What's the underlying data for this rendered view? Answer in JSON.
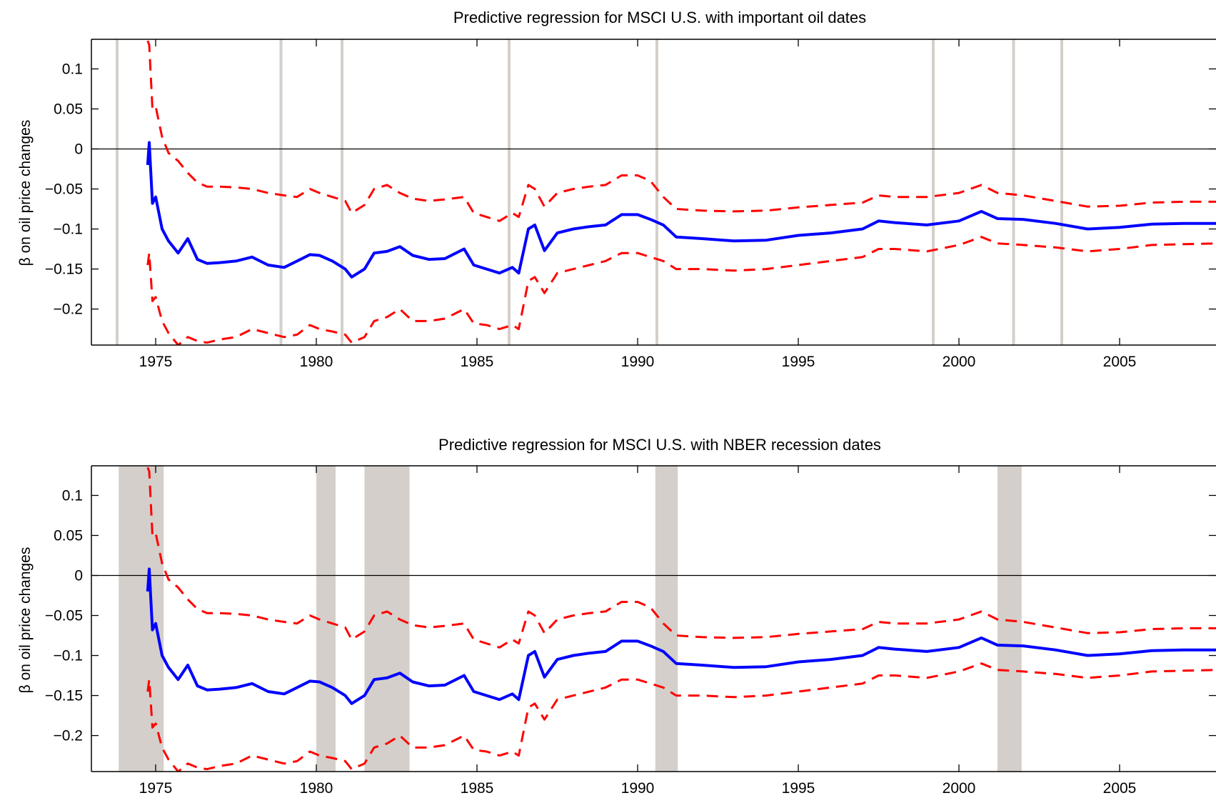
{
  "chart_data": [
    {
      "type": "line",
      "title": "Predictive regression for MSCI U.S. with important oil dates",
      "xlabel": "",
      "ylabel": "β on oil price changes",
      "xlim": [
        1973.0,
        2008.0
      ],
      "ylim": [
        -0.245,
        0.137
      ],
      "xticks": [
        1975,
        1980,
        1985,
        1990,
        1995,
        2000,
        2005
      ],
      "xtick_labels": [
        "1975",
        "1980",
        "1985",
        "1990",
        "1995",
        "2000",
        "2005"
      ],
      "yticks": [
        0.1,
        0.05,
        0,
        -0.05,
        -0.1,
        -0.15,
        -0.2
      ],
      "ytick_labels": [
        "0.1",
        "0.05",
        "0",
        "−0.05",
        "−0.1",
        "−0.15",
        "−0.2"
      ],
      "grid": false,
      "zero_line": true,
      "highlight_type": "lines",
      "highlights": [
        1973.8,
        1978.9,
        1980.8,
        1986.0,
        1990.6,
        1999.2,
        2001.7,
        2003.2
      ],
      "highlight_color": "#d4cfca",
      "series": [
        {
          "color": "#0000ff",
          "style": "solid",
          "x": [
            1974.75,
            1974.8,
            1974.9,
            1975.0,
            1975.2,
            1975.4,
            1975.7,
            1976.0,
            1976.3,
            1976.6,
            1977.0,
            1977.5,
            1978.0,
            1978.5,
            1979.0,
            1979.4,
            1979.8,
            1980.1,
            1980.5,
            1980.9,
            1981.1,
            1981.5,
            1981.8,
            1982.2,
            1982.6,
            1983.0,
            1983.5,
            1984.0,
            1984.6,
            1984.9,
            1985.3,
            1985.7,
            1986.1,
            1986.3,
            1986.6,
            1986.8,
            1987.1,
            1987.5,
            1988.0,
            1988.5,
            1989.0,
            1989.5,
            1990.0,
            1990.4,
            1990.8,
            1991.2,
            1992.0,
            1993.0,
            1994.0,
            1995.0,
            1996.0,
            1997.0,
            1997.5,
            1998.0,
            1999.0,
            2000.0,
            2000.7,
            2001.2,
            2002.0,
            2003.0,
            2004.0,
            2005.0,
            2006.0,
            2007.0,
            2008.0
          ],
          "y": [
            -0.02,
            0.008,
            -0.068,
            -0.06,
            -0.1,
            -0.115,
            -0.13,
            -0.112,
            -0.138,
            -0.143,
            -0.142,
            -0.14,
            -0.135,
            -0.145,
            -0.148,
            -0.14,
            -0.132,
            -0.133,
            -0.14,
            -0.15,
            -0.16,
            -0.15,
            -0.13,
            -0.128,
            -0.122,
            -0.133,
            -0.138,
            -0.137,
            -0.125,
            -0.145,
            -0.15,
            -0.155,
            -0.148,
            -0.155,
            -0.1,
            -0.095,
            -0.127,
            -0.105,
            -0.1,
            -0.097,
            -0.095,
            -0.082,
            -0.082,
            -0.088,
            -0.095,
            -0.11,
            -0.112,
            -0.115,
            -0.114,
            -0.108,
            -0.105,
            -0.1,
            -0.09,
            -0.092,
            -0.095,
            -0.09,
            -0.078,
            -0.087,
            -0.088,
            -0.093,
            -0.1,
            -0.098,
            -0.094,
            -0.093,
            -0.093
          ]
        },
        {
          "color": "#ff0000",
          "style": "dashed",
          "x": [
            1974.75,
            1974.8,
            1974.9,
            1975.0,
            1975.2,
            1975.4,
            1975.7,
            1976.0,
            1976.3,
            1976.6,
            1977.0,
            1977.5,
            1978.0,
            1978.5,
            1979.0,
            1979.4,
            1979.8,
            1980.1,
            1980.5,
            1980.9,
            1981.1,
            1981.5,
            1981.8,
            1982.2,
            1982.6,
            1983.0,
            1983.5,
            1984.0,
            1984.6,
            1984.9,
            1985.3,
            1985.7,
            1986.1,
            1986.3,
            1986.6,
            1986.8,
            1987.1,
            1987.5,
            1988.0,
            1988.5,
            1989.0,
            1989.5,
            1990.0,
            1990.4,
            1990.8,
            1991.2,
            1992.0,
            1993.0,
            1994.0,
            1995.0,
            1996.0,
            1997.0,
            1997.5,
            1998.0,
            1999.0,
            2000.0,
            2000.7,
            2001.2,
            2002.0,
            2003.0,
            2004.0,
            2005.0,
            2006.0,
            2007.0,
            2008.0
          ],
          "y": [
            0.135,
            0.13,
            0.05,
            0.053,
            0.015,
            -0.005,
            -0.015,
            -0.03,
            -0.042,
            -0.047,
            -0.047,
            -0.048,
            -0.05,
            -0.055,
            -0.058,
            -0.06,
            -0.05,
            -0.055,
            -0.06,
            -0.065,
            -0.08,
            -0.07,
            -0.05,
            -0.045,
            -0.055,
            -0.062,
            -0.065,
            -0.063,
            -0.06,
            -0.08,
            -0.085,
            -0.09,
            -0.08,
            -0.085,
            -0.045,
            -0.05,
            -0.072,
            -0.055,
            -0.05,
            -0.047,
            -0.045,
            -0.033,
            -0.033,
            -0.04,
            -0.06,
            -0.075,
            -0.077,
            -0.078,
            -0.077,
            -0.073,
            -0.07,
            -0.067,
            -0.058,
            -0.06,
            -0.06,
            -0.055,
            -0.045,
            -0.055,
            -0.058,
            -0.065,
            -0.072,
            -0.071,
            -0.067,
            -0.066,
            -0.066
          ]
        },
        {
          "color": "#ff0000",
          "style": "dashed",
          "x": [
            1974.75,
            1974.8,
            1974.9,
            1975.0,
            1975.2,
            1975.4,
            1975.7,
            1976.0,
            1976.3,
            1976.6,
            1977.0,
            1977.5,
            1978.0,
            1978.5,
            1979.0,
            1979.4,
            1979.8,
            1980.1,
            1980.5,
            1980.9,
            1981.1,
            1981.5,
            1981.8,
            1982.2,
            1982.6,
            1983.0,
            1983.5,
            1984.0,
            1984.6,
            1984.9,
            1985.3,
            1985.7,
            1986.1,
            1986.3,
            1986.6,
            1986.8,
            1987.1,
            1987.5,
            1988.0,
            1988.5,
            1989.0,
            1989.5,
            1990.0,
            1990.4,
            1990.8,
            1991.2,
            1992.0,
            1993.0,
            1994.0,
            1995.0,
            1996.0,
            1997.0,
            1997.5,
            1998.0,
            1999.0,
            2000.0,
            2000.7,
            2001.2,
            2002.0,
            2003.0,
            2004.0,
            2005.0,
            2006.0,
            2007.0,
            2008.0
          ],
          "y": [
            -0.145,
            -0.13,
            -0.19,
            -0.185,
            -0.215,
            -0.23,
            -0.245,
            -0.235,
            -0.24,
            -0.242,
            -0.238,
            -0.235,
            -0.225,
            -0.23,
            -0.235,
            -0.232,
            -0.22,
            -0.225,
            -0.228,
            -0.232,
            -0.242,
            -0.235,
            -0.215,
            -0.21,
            -0.2,
            -0.215,
            -0.215,
            -0.212,
            -0.2,
            -0.218,
            -0.22,
            -0.225,
            -0.22,
            -0.225,
            -0.165,
            -0.16,
            -0.18,
            -0.155,
            -0.15,
            -0.145,
            -0.14,
            -0.13,
            -0.13,
            -0.135,
            -0.14,
            -0.15,
            -0.15,
            -0.152,
            -0.15,
            -0.145,
            -0.14,
            -0.135,
            -0.125,
            -0.125,
            -0.128,
            -0.12,
            -0.11,
            -0.118,
            -0.12,
            -0.123,
            -0.128,
            -0.125,
            -0.12,
            -0.119,
            -0.118
          ]
        }
      ]
    },
    {
      "type": "line",
      "title": "Predictive regression for MSCI U.S. with NBER recession dates",
      "xlabel": "",
      "ylabel": "β on oil price changes",
      "xlim": [
        1973.0,
        2008.0
      ],
      "ylim": [
        -0.245,
        0.137
      ],
      "xticks": [
        1975,
        1980,
        1985,
        1990,
        1995,
        2000,
        2005
      ],
      "xtick_labels": [
        "1975",
        "1980",
        "1985",
        "1990",
        "1995",
        "2000",
        "2005"
      ],
      "yticks": [
        0.1,
        0.05,
        0,
        -0.05,
        -0.1,
        -0.15,
        -0.2
      ],
      "ytick_labels": [
        "0.1",
        "0.05",
        "0",
        "−0.05",
        "−0.1",
        "−0.15",
        "−0.2"
      ],
      "grid": false,
      "zero_line": true,
      "highlight_type": "bands",
      "highlights": [
        [
          1973.85,
          1975.25
        ],
        [
          1980.0,
          1980.6
        ],
        [
          1981.5,
          1982.9
        ],
        [
          1990.55,
          1991.25
        ],
        [
          2001.2,
          2001.95
        ]
      ],
      "highlight_color": "#d4cfca",
      "series": [
        {
          "color": "#0000ff",
          "style": "solid",
          "x": [
            1974.75,
            1974.8,
            1974.9,
            1975.0,
            1975.2,
            1975.4,
            1975.7,
            1976.0,
            1976.3,
            1976.6,
            1977.0,
            1977.5,
            1978.0,
            1978.5,
            1979.0,
            1979.4,
            1979.8,
            1980.1,
            1980.5,
            1980.9,
            1981.1,
            1981.5,
            1981.8,
            1982.2,
            1982.6,
            1983.0,
            1983.5,
            1984.0,
            1984.6,
            1984.9,
            1985.3,
            1985.7,
            1986.1,
            1986.3,
            1986.6,
            1986.8,
            1987.1,
            1987.5,
            1988.0,
            1988.5,
            1989.0,
            1989.5,
            1990.0,
            1990.4,
            1990.8,
            1991.2,
            1992.0,
            1993.0,
            1994.0,
            1995.0,
            1996.0,
            1997.0,
            1997.5,
            1998.0,
            1999.0,
            2000.0,
            2000.7,
            2001.2,
            2002.0,
            2003.0,
            2004.0,
            2005.0,
            2006.0,
            2007.0,
            2008.0
          ],
          "y": [
            -0.02,
            0.008,
            -0.068,
            -0.06,
            -0.1,
            -0.115,
            -0.13,
            -0.112,
            -0.138,
            -0.143,
            -0.142,
            -0.14,
            -0.135,
            -0.145,
            -0.148,
            -0.14,
            -0.132,
            -0.133,
            -0.14,
            -0.15,
            -0.16,
            -0.15,
            -0.13,
            -0.128,
            -0.122,
            -0.133,
            -0.138,
            -0.137,
            -0.125,
            -0.145,
            -0.15,
            -0.155,
            -0.148,
            -0.155,
            -0.1,
            -0.095,
            -0.127,
            -0.105,
            -0.1,
            -0.097,
            -0.095,
            -0.082,
            -0.082,
            -0.088,
            -0.095,
            -0.11,
            -0.112,
            -0.115,
            -0.114,
            -0.108,
            -0.105,
            -0.1,
            -0.09,
            -0.092,
            -0.095,
            -0.09,
            -0.078,
            -0.087,
            -0.088,
            -0.093,
            -0.1,
            -0.098,
            -0.094,
            -0.093,
            -0.093
          ]
        },
        {
          "color": "#ff0000",
          "style": "dashed",
          "x": [
            1974.75,
            1974.8,
            1974.9,
            1975.0,
            1975.2,
            1975.4,
            1975.7,
            1976.0,
            1976.3,
            1976.6,
            1977.0,
            1977.5,
            1978.0,
            1978.5,
            1979.0,
            1979.4,
            1979.8,
            1980.1,
            1980.5,
            1980.9,
            1981.1,
            1981.5,
            1981.8,
            1982.2,
            1982.6,
            1983.0,
            1983.5,
            1984.0,
            1984.6,
            1984.9,
            1985.3,
            1985.7,
            1986.1,
            1986.3,
            1986.6,
            1986.8,
            1987.1,
            1987.5,
            1988.0,
            1988.5,
            1989.0,
            1989.5,
            1990.0,
            1990.4,
            1990.8,
            1991.2,
            1992.0,
            1993.0,
            1994.0,
            1995.0,
            1996.0,
            1997.0,
            1997.5,
            1998.0,
            1999.0,
            2000.0,
            2000.7,
            2001.2,
            2002.0,
            2003.0,
            2004.0,
            2005.0,
            2006.0,
            2007.0,
            2008.0
          ],
          "y": [
            0.135,
            0.13,
            0.05,
            0.053,
            0.015,
            -0.005,
            -0.015,
            -0.03,
            -0.042,
            -0.047,
            -0.047,
            -0.048,
            -0.05,
            -0.055,
            -0.058,
            -0.06,
            -0.05,
            -0.055,
            -0.06,
            -0.065,
            -0.08,
            -0.07,
            -0.05,
            -0.045,
            -0.055,
            -0.062,
            -0.065,
            -0.063,
            -0.06,
            -0.08,
            -0.085,
            -0.09,
            -0.08,
            -0.085,
            -0.045,
            -0.05,
            -0.072,
            -0.055,
            -0.05,
            -0.047,
            -0.045,
            -0.033,
            -0.033,
            -0.04,
            -0.06,
            -0.075,
            -0.077,
            -0.078,
            -0.077,
            -0.073,
            -0.07,
            -0.067,
            -0.058,
            -0.06,
            -0.06,
            -0.055,
            -0.045,
            -0.055,
            -0.058,
            -0.065,
            -0.072,
            -0.071,
            -0.067,
            -0.066,
            -0.066
          ]
        },
        {
          "color": "#ff0000",
          "style": "dashed",
          "x": [
            1974.75,
            1974.8,
            1974.9,
            1975.0,
            1975.2,
            1975.4,
            1975.7,
            1976.0,
            1976.3,
            1976.6,
            1977.0,
            1977.5,
            1978.0,
            1978.5,
            1979.0,
            1979.4,
            1979.8,
            1980.1,
            1980.5,
            1980.9,
            1981.1,
            1981.5,
            1981.8,
            1982.2,
            1982.6,
            1983.0,
            1983.5,
            1984.0,
            1984.6,
            1984.9,
            1985.3,
            1985.7,
            1986.1,
            1986.3,
            1986.6,
            1986.8,
            1987.1,
            1987.5,
            1988.0,
            1988.5,
            1989.0,
            1989.5,
            1990.0,
            1990.4,
            1990.8,
            1991.2,
            1992.0,
            1993.0,
            1994.0,
            1995.0,
            1996.0,
            1997.0,
            1997.5,
            1998.0,
            1999.0,
            2000.0,
            2000.7,
            2001.2,
            2002.0,
            2003.0,
            2004.0,
            2005.0,
            2006.0,
            2007.0,
            2008.0
          ],
          "y": [
            -0.145,
            -0.13,
            -0.19,
            -0.185,
            -0.215,
            -0.23,
            -0.245,
            -0.235,
            -0.24,
            -0.242,
            -0.238,
            -0.235,
            -0.225,
            -0.23,
            -0.235,
            -0.232,
            -0.22,
            -0.225,
            -0.228,
            -0.232,
            -0.242,
            -0.235,
            -0.215,
            -0.21,
            -0.2,
            -0.215,
            -0.215,
            -0.212,
            -0.2,
            -0.218,
            -0.22,
            -0.225,
            -0.22,
            -0.225,
            -0.165,
            -0.16,
            -0.18,
            -0.155,
            -0.15,
            -0.145,
            -0.14,
            -0.13,
            -0.13,
            -0.135,
            -0.14,
            -0.15,
            -0.15,
            -0.152,
            -0.15,
            -0.145,
            -0.14,
            -0.135,
            -0.125,
            -0.125,
            -0.128,
            -0.12,
            -0.11,
            -0.118,
            -0.12,
            -0.123,
            -0.128,
            -0.125,
            -0.12,
            -0.119,
            -0.118
          ]
        }
      ]
    }
  ]
}
